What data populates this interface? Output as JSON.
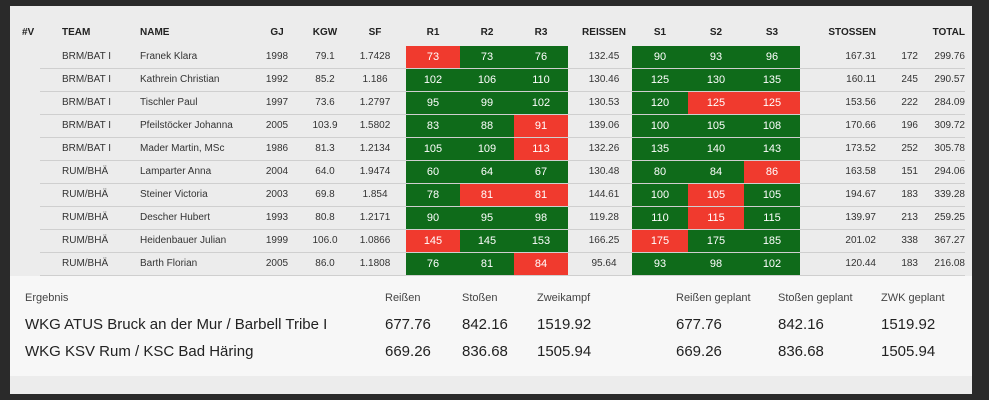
{
  "table": {
    "header": [
      "#V",
      "TEAM",
      "NAME",
      "GJ",
      "KGW",
      "SF",
      "R1",
      "R2",
      "R3",
      "REISSEN",
      "S1",
      "S2",
      "S3",
      "STOSSEN",
      "TOTAL"
    ],
    "rows": [
      [
        "BRM/BAT I",
        "Franek Klara",
        "1998",
        "79.1",
        "1.7428",
        "73",
        "73",
        "76",
        "132.45",
        "90",
        "93",
        "96",
        "167.31",
        "172",
        "299.76"
      ],
      [
        "BRM/BAT I",
        "Kathrein Christian",
        "1992",
        "85.2",
        "1.186",
        "102",
        "106",
        "110",
        "130.46",
        "125",
        "130",
        "135",
        "160.11",
        "245",
        "290.57"
      ],
      [
        "BRM/BAT I",
        "Tischler Paul",
        "1997",
        "73.6",
        "1.2797",
        "95",
        "99",
        "102",
        "130.53",
        "120",
        "125",
        "125",
        "153.56",
        "222",
        "284.09"
      ],
      [
        "BRM/BAT I",
        "Pfeilstöcker Johanna",
        "2005",
        "103.9",
        "1.5802",
        "83",
        "88",
        "91",
        "139.06",
        "100",
        "105",
        "108",
        "170.66",
        "196",
        "309.72"
      ],
      [
        "BRM/BAT I",
        "Mader Martin, MSc",
        "1986",
        "81.3",
        "1.2134",
        "105",
        "109",
        "113",
        "132.26",
        "135",
        "140",
        "143",
        "173.52",
        "252",
        "305.78"
      ],
      [
        "RUM/BHÄ",
        "Lamparter Anna",
        "2004",
        "64.0",
        "1.9474",
        "60",
        "64",
        "67",
        "130.48",
        "80",
        "84",
        "86",
        "163.58",
        "151",
        "294.06"
      ],
      [
        "RUM/BHÄ",
        "Steiner Victoria",
        "2003",
        "69.8",
        "1.854",
        "78",
        "81",
        "81",
        "144.61",
        "100",
        "105",
        "105",
        "194.67",
        "183",
        "339.28"
      ],
      [
        "RUM/BHÄ",
        "Descher Hubert",
        "1993",
        "80.8",
        "1.2171",
        "90",
        "95",
        "98",
        "119.28",
        "110",
        "115",
        "115",
        "139.97",
        "213",
        "259.25"
      ],
      [
        "RUM/BHÄ",
        "Heidenbauer Julian",
        "1999",
        "106.0",
        "1.0866",
        "145",
        "145",
        "153",
        "166.25",
        "175",
        "175",
        "185",
        "201.02",
        "338",
        "367.27"
      ],
      [
        "RUM/BHÄ",
        "Barth Florian",
        "2005",
        "86.0",
        "1.1808",
        "76",
        "81",
        "84",
        "95.64",
        "93",
        "98",
        "102",
        "120.44",
        "183",
        "216.08"
      ]
    ],
    "attempt_colors": [
      [
        "#f03a2e",
        "#0f6b1a",
        "#0f6b1a",
        "#0f6b1a",
        "#0f6b1a",
        "#0f6b1a"
      ],
      [
        "#0f6b1a",
        "#0f6b1a",
        "#0f6b1a",
        "#0f6b1a",
        "#0f6b1a",
        "#0f6b1a"
      ],
      [
        "#0f6b1a",
        "#0f6b1a",
        "#0f6b1a",
        "#0f6b1a",
        "#f03a2e",
        "#f03a2e"
      ],
      [
        "#0f6b1a",
        "#0f6b1a",
        "#f03a2e",
        "#0f6b1a",
        "#0f6b1a",
        "#0f6b1a"
      ],
      [
        "#0f6b1a",
        "#0f6b1a",
        "#f03a2e",
        "#0f6b1a",
        "#0f6b1a",
        "#0f6b1a"
      ],
      [
        "#0f6b1a",
        "#0f6b1a",
        "#0f6b1a",
        "#0f6b1a",
        "#0f6b1a",
        "#f03a2e"
      ],
      [
        "#0f6b1a",
        "#f03a2e",
        "#f03a2e",
        "#0f6b1a",
        "#f03a2e",
        "#0f6b1a"
      ],
      [
        "#0f6b1a",
        "#0f6b1a",
        "#0f6b1a",
        "#0f6b1a",
        "#f03a2e",
        "#0f6b1a"
      ],
      [
        "#f03a2e",
        "#0f6b1a",
        "#0f6b1a",
        "#f03a2e",
        "#0f6b1a",
        "#0f6b1a"
      ],
      [
        "#0f6b1a",
        "#0f6b1a",
        "#f03a2e",
        "#0f6b1a",
        "#0f6b1a",
        "#0f6b1a"
      ]
    ]
  },
  "results": {
    "header": [
      "Ergebnis",
      "Reißen",
      "Stoßen",
      "Zweikampf",
      "Reißen geplant",
      "Stoßen geplant",
      "ZWK geplant"
    ],
    "rows": [
      [
        "WKG ATUS Bruck an der Mur / Barbell Tribe I",
        "677.76",
        "842.16",
        "1519.92",
        "677.76",
        "842.16",
        "1519.92"
      ],
      [
        "WKG KSV Rum / KSC Bad Häring",
        "669.26",
        "836.68",
        "1505.94",
        "669.26",
        "836.68",
        "1505.94"
      ]
    ]
  }
}
